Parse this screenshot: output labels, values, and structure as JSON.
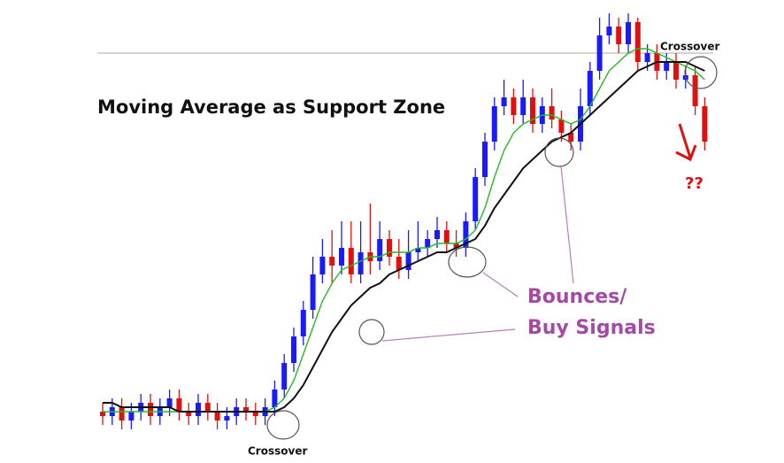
{
  "chart_data": {
    "type": "candlestick",
    "title": "Moving Average as Support Zone",
    "annotations": {
      "crossover_left": "Crossover",
      "crossover_right": "Crossover",
      "bounces": "Bounces/",
      "buy_signals": "Buy Signals",
      "question": "??"
    },
    "ylim": [
      0,
      100
    ],
    "up_color": "#1a1aff",
    "down_color": "#e01010",
    "reference_line": {
      "value": 90,
      "color": "#bbbbbb"
    },
    "open": [
      9,
      8,
      10,
      7,
      9,
      11,
      8,
      10,
      12,
      9,
      8,
      11,
      9,
      7,
      8,
      10,
      9,
      8,
      10,
      14,
      20,
      26,
      32,
      40,
      44,
      42,
      46,
      40,
      45,
      43,
      48,
      44,
      41,
      45,
      46,
      48,
      50,
      47,
      46,
      52,
      62,
      70,
      78,
      80,
      76,
      80,
      74,
      78,
      75,
      72,
      70,
      78,
      86,
      94,
      96,
      92,
      97,
      88,
      90,
      86,
      88,
      84,
      85,
      78
    ],
    "high": [
      11,
      12,
      12,
      11,
      13,
      13,
      12,
      14,
      14,
      11,
      13,
      13,
      11,
      10,
      12,
      12,
      11,
      12,
      16,
      22,
      28,
      34,
      44,
      48,
      50,
      52,
      52,
      52,
      56,
      52,
      50,
      48,
      50,
      52,
      50,
      53,
      52,
      50,
      54,
      64,
      72,
      80,
      84,
      82,
      84,
      82,
      80,
      82,
      77,
      74,
      82,
      88,
      98,
      99,
      98,
      99,
      98,
      92,
      92,
      90,
      90,
      87,
      87,
      80
    ],
    "low": [
      6,
      6,
      5,
      5,
      7,
      6,
      6,
      8,
      7,
      6,
      6,
      7,
      5,
      5,
      6,
      7,
      6,
      6,
      8,
      12,
      18,
      24,
      30,
      38,
      38,
      40,
      38,
      38,
      40,
      41,
      42,
      39,
      39,
      43,
      44,
      46,
      45,
      44,
      44,
      50,
      60,
      68,
      76,
      74,
      74,
      72,
      72,
      73,
      70,
      68,
      68,
      76,
      84,
      92,
      90,
      90,
      86,
      86,
      84,
      84,
      82,
      82,
      76,
      68
    ],
    "close": [
      8,
      10,
      7,
      9,
      11,
      8,
      10,
      12,
      9,
      8,
      11,
      9,
      7,
      8,
      10,
      9,
      8,
      10,
      14,
      20,
      26,
      32,
      40,
      44,
      42,
      46,
      40,
      45,
      43,
      48,
      44,
      41,
      45,
      46,
      48,
      50,
      47,
      46,
      52,
      62,
      70,
      78,
      80,
      76,
      80,
      74,
      78,
      75,
      72,
      70,
      78,
      86,
      94,
      96,
      92,
      97,
      88,
      90,
      86,
      88,
      84,
      85,
      78,
      70
    ],
    "series": [
      {
        "color": "#22bb22",
        "values": [
          9,
          9,
          9,
          9,
          9,
          9,
          9,
          9,
          9,
          9,
          9,
          9,
          9,
          9,
          9,
          9,
          9,
          9,
          10,
          12,
          16,
          22,
          28,
          34,
          38,
          41,
          42,
          43,
          44,
          44,
          45,
          45,
          45,
          46,
          46,
          47,
          47,
          47,
          48,
          50,
          55,
          62,
          68,
          72,
          74,
          75,
          76,
          76,
          75,
          74,
          75,
          78,
          82,
          86,
          88,
          90,
          91,
          91,
          90,
          89,
          88,
          87,
          86,
          84
        ]
      },
      {
        "color": "#111111",
        "values": [
          11,
          11,
          10,
          10,
          10,
          10,
          10,
          10,
          9,
          9,
          9,
          9,
          9,
          9,
          9,
          9,
          9,
          9,
          9,
          10,
          12,
          15,
          19,
          23,
          27,
          30,
          33,
          35,
          37,
          38,
          40,
          41,
          42,
          43,
          44,
          45,
          45,
          46,
          47,
          48,
          51,
          55,
          58,
          61,
          64,
          66,
          68,
          70,
          71,
          72,
          74,
          76,
          78,
          80,
          82,
          84,
          86,
          87,
          88,
          88,
          88,
          88,
          87,
          86
        ]
      }
    ]
  }
}
